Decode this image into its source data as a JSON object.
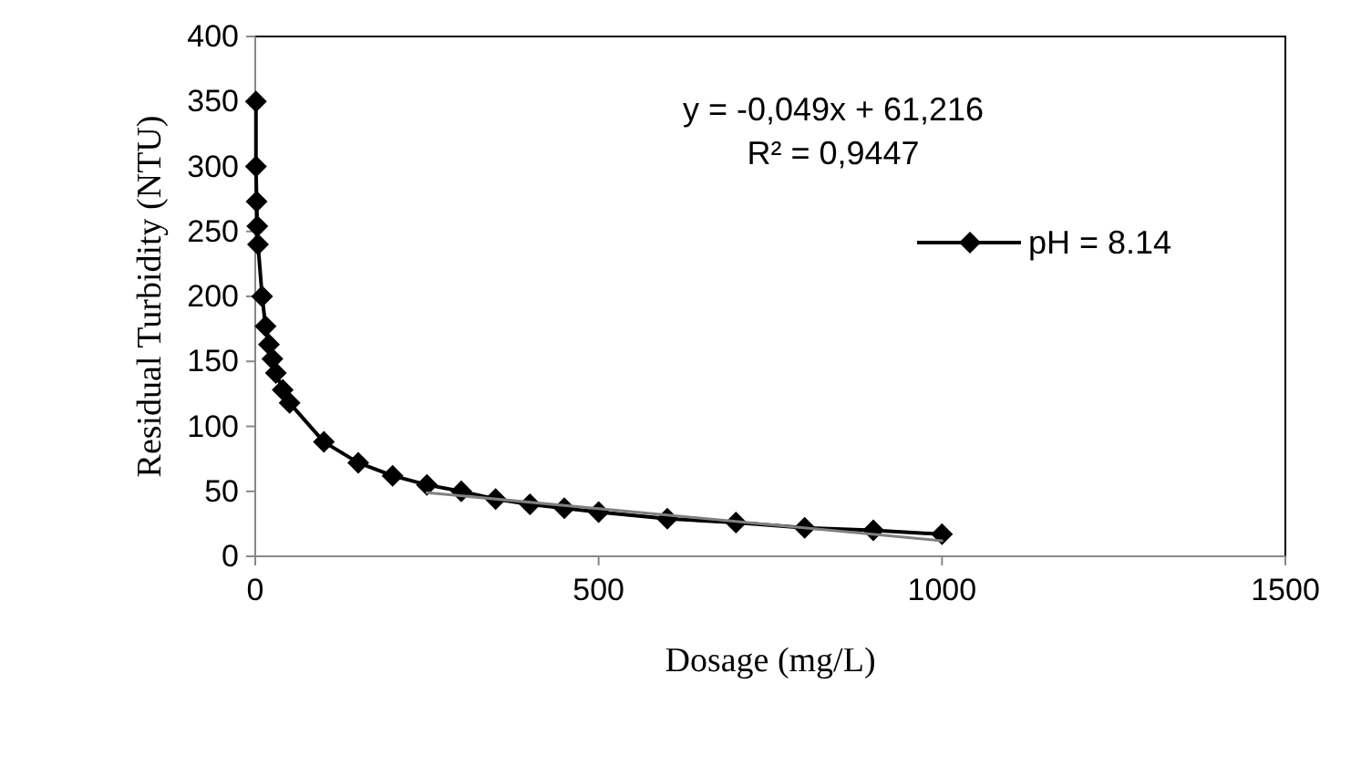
{
  "chart_data": {
    "type": "line",
    "xlabel": "Dosage (mg/L)",
    "ylabel": "Residual Turbidity (NTU)",
    "xlim": [
      0,
      1500
    ],
    "xticks": [
      0,
      500,
      1000,
      1500
    ],
    "ylim": [
      0,
      400
    ],
    "yticks": [
      0,
      50,
      100,
      150,
      200,
      250,
      300,
      350,
      400
    ],
    "grid": false,
    "legend": "right",
    "marker": "diamond",
    "line_style": "solid",
    "annotations": [
      "y = -0,049x + 61,216",
      "R² = 0,9447"
    ],
    "series": [
      {
        "name": "pH = 8.14",
        "color": "#000000",
        "x": [
          1,
          1,
          2,
          3,
          4,
          10,
          15,
          20,
          25,
          30,
          40,
          50,
          100,
          150,
          200,
          250,
          300,
          350,
          400,
          450,
          500,
          600,
          700,
          800,
          900,
          1000
        ],
        "values": [
          350,
          300,
          273,
          254,
          240,
          200,
          177,
          163,
          152,
          141,
          128,
          118,
          88,
          72,
          62,
          55,
          50,
          44,
          40,
          37,
          34,
          29,
          26,
          22,
          20,
          17
        ]
      },
      {
        "type": "line",
        "color": "#808080",
        "marker": "none",
        "x": [
          250,
          1000
        ],
        "values": [
          49,
          12
        ]
      }
    ]
  }
}
